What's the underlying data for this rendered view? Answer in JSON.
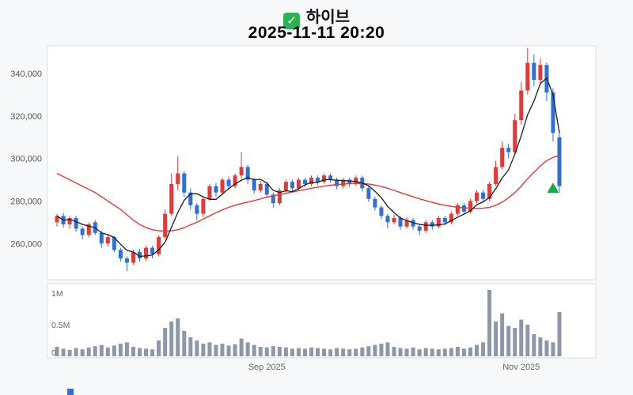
{
  "header": {
    "stock_name": "하이브",
    "datetime": "2025-11-11 20:20",
    "check_icon": "checkmark",
    "check_color": "#2eb150"
  },
  "chart_data": {
    "type": "candlestick_with_volume",
    "title": "하이브",
    "subtitle": "2025-11-11 20:20",
    "grid": false,
    "legend_position": "none",
    "price_axis": {
      "min": 243000,
      "max": 353000,
      "ticks": [
        {
          "value": 260000,
          "label": "260,000"
        },
        {
          "value": 280000,
          "label": "280,000"
        },
        {
          "value": 300000,
          "label": "300,000"
        },
        {
          "value": 320000,
          "label": "320,000"
        },
        {
          "value": 340000,
          "label": "340,000"
        }
      ]
    },
    "volume_axis": {
      "max": 1100000,
      "ticks": [
        {
          "value": 0,
          "label": "0"
        },
        {
          "value": 500000,
          "label": "0.5M"
        },
        {
          "value": 1000000,
          "label": "1M"
        }
      ]
    },
    "x_ticks": [
      {
        "index": 33,
        "label": "Sep 2025"
      },
      {
        "index": 73,
        "label": "Nov 2025"
      }
    ],
    "colors": {
      "up": "#e03a3a",
      "down": "#2f6fd6",
      "ma_short": "#1b1b1b",
      "ma_long": "#e03a3a",
      "volume": "#8d97a9",
      "signal": "#17a84a",
      "panel_border": "#d9dce1",
      "panel_fill": "#ffffff"
    },
    "candles": [
      [
        270000,
        274000,
        268000,
        273000
      ],
      [
        273000,
        274500,
        267500,
        269000
      ],
      [
        269000,
        273000,
        267000,
        272000
      ],
      [
        272000,
        273000,
        265500,
        267000
      ],
      [
        267000,
        268000,
        262000,
        264000
      ],
      [
        264000,
        270000,
        263000,
        269000
      ],
      [
        270000,
        271000,
        264000,
        265000
      ],
      [
        265000,
        266000,
        258000,
        260000
      ],
      [
        260000,
        264500,
        258500,
        263000
      ],
      [
        263000,
        263500,
        256000,
        257000
      ],
      [
        257000,
        258000,
        251500,
        253000
      ],
      [
        253000,
        254000,
        247000,
        251000
      ],
      [
        251000,
        257000,
        250000,
        256000
      ],
      [
        256000,
        257500,
        251500,
        253000
      ],
      [
        253000,
        259000,
        252000,
        258000
      ],
      [
        258000,
        259000,
        253000,
        255000
      ],
      [
        255000,
        264000,
        254000,
        263000
      ],
      [
        263000,
        276000,
        262000,
        274000
      ],
      [
        274000,
        293000,
        273000,
        288000
      ],
      [
        288000,
        301000,
        285000,
        293000
      ],
      [
        293000,
        294000,
        282000,
        284000
      ],
      [
        284000,
        286000,
        276000,
        278000
      ],
      [
        278000,
        279000,
        271000,
        274000
      ],
      [
        274000,
        282000,
        272500,
        281000
      ],
      [
        281000,
        288000,
        280000,
        287000
      ],
      [
        287000,
        288500,
        282000,
        284000
      ],
      [
        284000,
        291000,
        283000,
        290000
      ],
      [
        290000,
        291500,
        285000,
        287000
      ],
      [
        287000,
        293000,
        286000,
        292000
      ],
      [
        292000,
        303000,
        290500,
        296000
      ],
      [
        296000,
        297000,
        288000,
        290000
      ],
      [
        290000,
        291000,
        283500,
        285000
      ],
      [
        285000,
        289500,
        284000,
        288000
      ],
      [
        288000,
        289000,
        281500,
        283000
      ],
      [
        283000,
        284000,
        277000,
        279000
      ],
      [
        279000,
        286000,
        278000,
        285000
      ],
      [
        285000,
        290000,
        284000,
        289000
      ],
      [
        289000,
        290000,
        284500,
        286000
      ],
      [
        286000,
        291000,
        285000,
        290000
      ],
      [
        290000,
        291000,
        286500,
        288000
      ],
      [
        288000,
        292000,
        287000,
        291000
      ],
      [
        291000,
        292000,
        287500,
        289000
      ],
      [
        289000,
        293000,
        288000,
        292000
      ],
      [
        292000,
        293000,
        288500,
        290000
      ],
      [
        290000,
        291000,
        285500,
        287000
      ],
      [
        287000,
        291000,
        286000,
        290000
      ],
      [
        290000,
        291000,
        286500,
        288000
      ],
      [
        288000,
        292000,
        287000,
        291000
      ],
      [
        291000,
        292000,
        284500,
        286000
      ],
      [
        286000,
        287000,
        279500,
        281000
      ],
      [
        281000,
        282000,
        275500,
        277000
      ],
      [
        277000,
        278000,
        271500,
        273000
      ],
      [
        273000,
        274000,
        267000,
        270000
      ],
      [
        270000,
        273500,
        269000,
        272000
      ],
      [
        272000,
        273000,
        266500,
        268000
      ],
      [
        268000,
        272500,
        267000,
        271000
      ],
      [
        271000,
        272000,
        266500,
        268000
      ],
      [
        268000,
        269000,
        264000,
        266000
      ],
      [
        266000,
        271000,
        265000,
        270000
      ],
      [
        270000,
        271000,
        266500,
        268000
      ],
      [
        268000,
        273000,
        267000,
        272000
      ],
      [
        272000,
        273000,
        268500,
        270000
      ],
      [
        270000,
        275000,
        269000,
        274000
      ],
      [
        274000,
        279000,
        273000,
        278000
      ],
      [
        278000,
        279000,
        273500,
        275000
      ],
      [
        275000,
        281000,
        274000,
        280000
      ],
      [
        280000,
        285000,
        279000,
        284000
      ],
      [
        284000,
        285000,
        279500,
        281000
      ],
      [
        281000,
        289000,
        280000,
        288000
      ],
      [
        288000,
        299000,
        287000,
        296000
      ],
      [
        296000,
        308000,
        295000,
        305000
      ],
      [
        305000,
        307000,
        300000,
        303000
      ],
      [
        303000,
        321000,
        302000,
        318000
      ],
      [
        318000,
        336000,
        316000,
        332000
      ],
      [
        332000,
        352000,
        330000,
        345000
      ],
      [
        345000,
        349000,
        334000,
        337000
      ],
      [
        337000,
        347000,
        335000,
        344000
      ],
      [
        344000,
        345000,
        327000,
        331000
      ],
      [
        331000,
        333000,
        308000,
        312000
      ],
      [
        310000,
        313000,
        284000,
        287000
      ]
    ],
    "volumes": [
      150000,
      120000,
      100000,
      130000,
      110000,
      140000,
      160000,
      180000,
      140000,
      170000,
      200000,
      220000,
      150000,
      130000,
      120000,
      110000,
      250000,
      450000,
      550000,
      600000,
      400000,
      300000,
      250000,
      200000,
      220000,
      180000,
      200000,
      170000,
      190000,
      280000,
      220000,
      180000,
      150000,
      140000,
      160000,
      150000,
      140000,
      120000,
      130000,
      120000,
      140000,
      130000,
      120000,
      110000,
      130000,
      120000,
      110000,
      120000,
      140000,
      160000,
      180000,
      200000,
      220000,
      150000,
      130000,
      120000,
      140000,
      110000,
      130000,
      120000,
      110000,
      120000,
      130000,
      150000,
      120000,
      140000,
      180000,
      220000,
      1050000,
      550000,
      680000,
      480000,
      450000,
      580000,
      500000,
      350000,
      300000,
      250000,
      220000,
      700000
    ],
    "ma_short": [
      273000,
      271000,
      271300,
      270300,
      269000,
      268200,
      267400,
      265000,
      264200,
      262800,
      259600,
      256800,
      256000,
      254000,
      254200,
      254600,
      257000,
      260600,
      267600,
      274600,
      280400,
      283400,
      283400,
      282000,
      280800,
      280800,
      283200,
      285800,
      288000,
      289800,
      291000,
      290000,
      290200,
      288400,
      285000,
      284000,
      284800,
      284400,
      285800,
      287600,
      288800,
      288800,
      290000,
      290000,
      289800,
      289600,
      289400,
      289200,
      288400,
      287200,
      284600,
      281600,
      277400,
      274600,
      272000,
      270800,
      269800,
      269000,
      268600,
      268600,
      268800,
      269200,
      270800,
      272400,
      273800,
      275400,
      278200,
      279600,
      281600,
      285800,
      290800,
      294600,
      302000,
      310800,
      320600,
      327000,
      335200,
      337800,
      330000,
      312000
    ],
    "ma_long": [
      293000,
      291500,
      290000,
      288500,
      287000,
      285500,
      284000,
      282000,
      280000,
      278000,
      276000,
      273500,
      271000,
      269000,
      267500,
      266500,
      266000,
      265800,
      266000,
      266500,
      267500,
      268800,
      270000,
      271500,
      273000,
      274500,
      275800,
      277000,
      278000,
      278800,
      279500,
      280200,
      281000,
      281800,
      282500,
      283000,
      283600,
      284200,
      284800,
      285400,
      286000,
      286500,
      287000,
      287400,
      287700,
      288000,
      288200,
      288300,
      288200,
      288000,
      287500,
      286800,
      286000,
      285000,
      284000,
      283000,
      282000,
      281000,
      280200,
      279400,
      278600,
      278000,
      277500,
      277000,
      276800,
      276600,
      276500,
      276600,
      277000,
      278000,
      279500,
      281500,
      284000,
      287000,
      290500,
      293500,
      296500,
      299000,
      300500,
      301500
    ],
    "signal_marker": {
      "shape": "triangle-up",
      "index": 78,
      "value": 286000
    }
  }
}
